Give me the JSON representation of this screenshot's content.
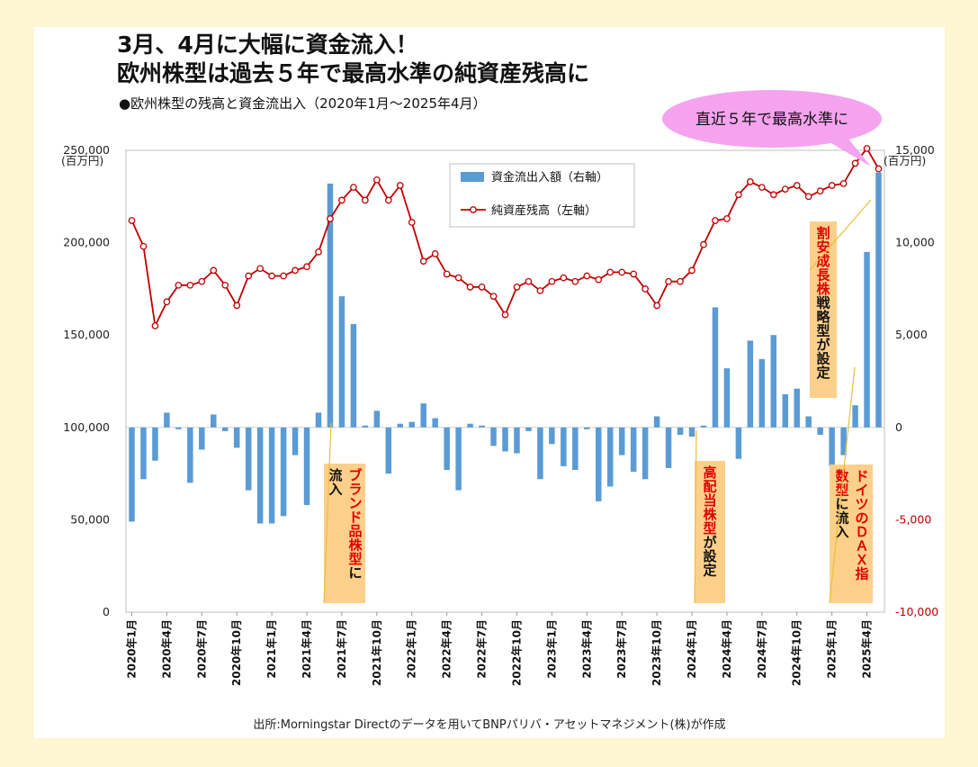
{
  "title_line1": "3月、4月に大幅に資金流入！",
  "title_line2": "欧州株型は過去５年で最高水準の純資産残高に",
  "subtitle": "●欧州株型の残高と資金流出入（2020年1月～2025年4月）",
  "source": "出所:Morningstar Directのデータを用いてBNPパリバ・アセットマネジメント(株)が作成",
  "callout": "直近５年で最高水準に",
  "colors": {
    "bar": "#5b9bd5",
    "line": "#c00000",
    "right_axis_negative": "#c00000",
    "annotation_bg": "#fcd08a",
    "annotation_red": "#e00000",
    "callout_bg": "#f5a3ef"
  },
  "annotations": [
    {
      "id": "brand",
      "parts": [
        {
          "t": "ブランド品株型",
          "red": true
        },
        {
          "t": "に",
          "red": false
        }
      ],
      "col2": "流入"
    },
    {
      "id": "dividend",
      "parts": [
        {
          "t": "高配当株型",
          "red": true
        },
        {
          "t": "が設定",
          "red": false
        }
      ],
      "col2": ""
    },
    {
      "id": "growth",
      "parts": [
        {
          "t": "割安成長株",
          "red": true
        },
        {
          "t": "戦略型が設定",
          "red": false
        }
      ],
      "col2": ""
    },
    {
      "id": "dax",
      "parts": [
        {
          "t": "ドイツのＤＡＸ指",
          "red": true
        }
      ],
      "col2parts": [
        {
          "t": "数型",
          "red": true
        },
        {
          "t": "に流入",
          "red": false
        }
      ]
    }
  ],
  "chart_data": {
    "type": "bar+line",
    "x_tick_labels": [
      "2020年1月",
      "2020年4月",
      "2020年7月",
      "2020年10月",
      "2021年1月",
      "2021年4月",
      "2021年7月",
      "2021年10月",
      "2022年1月",
      "2022年4月",
      "2022年7月",
      "2022年10月",
      "2023年1月",
      "2023年4月",
      "2023年7月",
      "2023年10月",
      "2024年1月",
      "2024年4月",
      "2024年7月",
      "2024年10月",
      "2025年1月",
      "2025年4月"
    ],
    "left_axis": {
      "min": 0,
      "max": 250000,
      "ticks": [
        "0",
        "50,000",
        "100,000",
        "150,000",
        "200,000",
        "250,000"
      ],
      "tick_values": [
        0,
        50000,
        100000,
        150000,
        200000,
        250000
      ],
      "unit": "(百万円)"
    },
    "right_axis": {
      "min": -10000,
      "max": 15000,
      "ticks": [
        "-10,000",
        "-5,000",
        "0",
        "5,000",
        "10,000",
        "15,000"
      ],
      "tick_values": [
        -10000,
        -5000,
        0,
        5000,
        10000,
        15000
      ],
      "unit": "(百万円)"
    },
    "legend": {
      "position": "top-center",
      "entries": [
        "資金流出入額（右軸）",
        "純資産残高（左軸）"
      ]
    },
    "series": [
      {
        "name": "資金流出入額（右軸）",
        "type": "bar",
        "axis": "right",
        "values": [
          -5100,
          -2800,
          -1800,
          800,
          -100,
          -3000,
          -1200,
          700,
          -200,
          -1100,
          -3400,
          -5200,
          -5200,
          -4800,
          -1500,
          -4200,
          800,
          13200,
          7100,
          5600,
          100,
          900,
          -2500,
          200,
          300,
          1300,
          500,
          -2300,
          -3400,
          200,
          100,
          -1000,
          -1300,
          -1400,
          -200,
          -2800,
          -900,
          -2100,
          -2300,
          -100,
          -4000,
          -3200,
          -1500,
          -2400,
          -2800,
          600,
          -2200,
          -400,
          -500,
          100,
          6500,
          3200,
          -1700,
          4700,
          3700,
          5000,
          1800,
          2100,
          600,
          -400,
          -2100,
          -1500,
          1200,
          9500,
          13800
        ],
        "note": "65 monthly values, Jan 2020 – Apr 2025"
      },
      {
        "name": "純資産残高（左軸）",
        "type": "line",
        "axis": "left",
        "values": [
          212000,
          198000,
          155000,
          168000,
          177000,
          177000,
          179000,
          185000,
          177000,
          166000,
          182000,
          186000,
          182000,
          182000,
          185000,
          187000,
          195000,
          213000,
          223000,
          230000,
          223000,
          234000,
          223000,
          231000,
          211000,
          190000,
          194000,
          183000,
          181000,
          176000,
          176000,
          171000,
          161000,
          176000,
          179000,
          174000,
          179000,
          181000,
          179000,
          182000,
          180000,
          184000,
          184000,
          183000,
          175000,
          166000,
          179000,
          179000,
          185000,
          199000,
          212000,
          213000,
          226000,
          233000,
          230000,
          226000,
          229000,
          231000,
          225000,
          228000,
          231000,
          232000,
          243000,
          251000,
          240000
        ]
      }
    ]
  }
}
